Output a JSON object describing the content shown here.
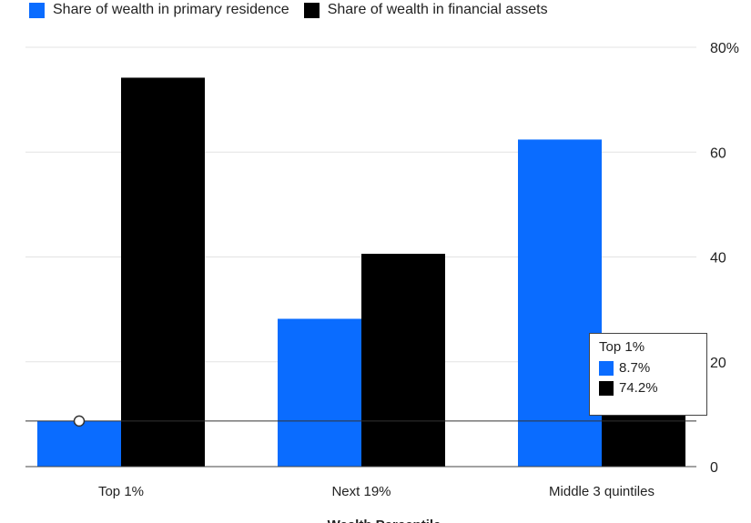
{
  "colors": {
    "primary_residence": "#0a6cff",
    "financial_assets": "#000000"
  },
  "legend": [
    {
      "label": "Share of wealth in primary residence",
      "color": "#0a6cff"
    },
    {
      "label": "Share of wealth in financial assets",
      "color": "#000000"
    }
  ],
  "chart_data": {
    "type": "bar",
    "categories": [
      "Top 1%",
      "Next 19%",
      "Middle 3 quintiles"
    ],
    "series": [
      {
        "name": "Share of wealth in primary residence",
        "values": [
          8.7,
          28.2,
          62.4
        ]
      },
      {
        "name": "Share of wealth in financial assets",
        "values": [
          74.2,
          40.6,
          10.0
        ]
      }
    ],
    "y_ticks": [
      "0",
      "20",
      "40",
      "60",
      "80%"
    ],
    "ylim": [
      0,
      80
    ],
    "xlabel": "Wealth Percentile",
    "ylabel": "",
    "y_axis_side": "right",
    "grid": true,
    "hover_line_value": 8.7,
    "tooltip": {
      "title": "Top 1%",
      "rows": [
        {
          "value": "8.7%",
          "color": "#0a6cff"
        },
        {
          "value": "74.2%",
          "color": "#000000"
        }
      ]
    }
  }
}
